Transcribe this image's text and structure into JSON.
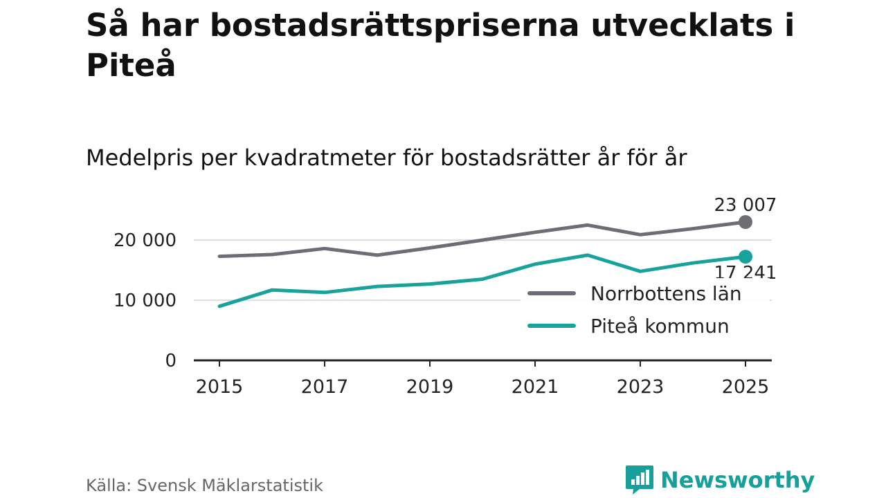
{
  "title": "Så har bostadsrättspriserna utvecklats i Piteå",
  "subtitle": "Medelpris per kvadratmeter för bostadsrätter år för år",
  "source": "Källa: Svensk Mäklarstatistik",
  "brand": "Newsworthy",
  "colors": {
    "norrbotten": "#6e6d75",
    "pitea": "#17a39c",
    "grid": "#dddddd",
    "axis": "#222222",
    "brand": "#17a09a"
  },
  "chart_data": {
    "type": "line",
    "x": [
      2015,
      2016,
      2017,
      2018,
      2019,
      2020,
      2021,
      2022,
      2023,
      2024,
      2025
    ],
    "xticks": [
      "2015",
      "2017",
      "2019",
      "2021",
      "2023",
      "2025"
    ],
    "ylim": [
      0,
      23500
    ],
    "yticks": [
      {
        "value": 0,
        "label": "0"
      },
      {
        "value": 10000,
        "label": "10 000"
      },
      {
        "value": 20000,
        "label": "20 000"
      }
    ],
    "series": [
      {
        "name": "Norrbottens län",
        "color": "#6e6d75",
        "values": [
          17300,
          17600,
          18600,
          17500,
          18700,
          20000,
          21300,
          22500,
          20900,
          21900,
          23007
        ],
        "end_label": "23 007"
      },
      {
        "name": "Piteå kommun",
        "color": "#17a39c",
        "values": [
          9000,
          11700,
          11300,
          12300,
          12700,
          13500,
          16000,
          17500,
          14800,
          16200,
          17241
        ],
        "end_label": "17 241"
      }
    ],
    "legend": "inside-right"
  }
}
